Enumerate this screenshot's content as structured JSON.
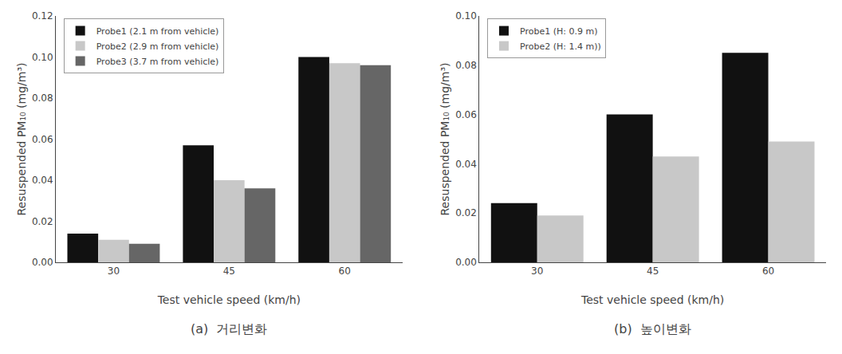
{
  "chart_data": [
    {
      "type": "bar",
      "title": "(a)  거리변화",
      "categories": [
        30,
        45,
        60
      ],
      "series": [
        {
          "name": "Probe1 (2.1 m from vehicle)",
          "color": "#111111",
          "values": [
            0.014,
            0.057,
            0.1
          ]
        },
        {
          "name": "Probe2 (2.9 m from vehicle)",
          "color": "#c8c8c8",
          "values": [
            0.011,
            0.04,
            0.097
          ]
        },
        {
          "name": "Probe3 (3.7 m from vehicle)",
          "color": "#666666",
          "values": [
            0.009,
            0.036,
            0.096
          ]
        }
      ],
      "xlabel": "Test vehicle speed (km/h)",
      "ylabel": "Resuspended PM₁₀ (mg/m³)",
      "ylim": [
        0.0,
        0.12
      ],
      "yticks": [
        {
          "value": 0.0,
          "label": "0.00"
        },
        0.02,
        0.04,
        0.06,
        0.08,
        {
          "value": 0.1,
          "label": "0.10"
        },
        0.12
      ],
      "grid": false,
      "legend": "upper left"
    },
    {
      "type": "bar",
      "title": "(b)  높이변화",
      "categories": [
        30,
        45,
        60
      ],
      "series": [
        {
          "name": "Probe1 (H: 0.9 m)",
          "color": "#111111",
          "values": [
            0.024,
            0.06,
            0.085
          ]
        },
        {
          "name": "Probe2 (H: 1.4 m))",
          "color": "#c8c8c8",
          "values": [
            0.019,
            0.043,
            0.049
          ]
        }
      ],
      "xlabel": "Test vehicle speed (km/h)",
      "ylabel": "Resuspended PM₁₀ (mg/m³)",
      "ylim": [
        0.0,
        0.1
      ],
      "yticks": [
        {
          "value": 0.0,
          "label": "0.00"
        },
        0.02,
        0.04,
        0.06,
        0.08,
        {
          "value": 0.1,
          "label": "0.10"
        }
      ],
      "grid": false,
      "legend": "upper left"
    }
  ]
}
